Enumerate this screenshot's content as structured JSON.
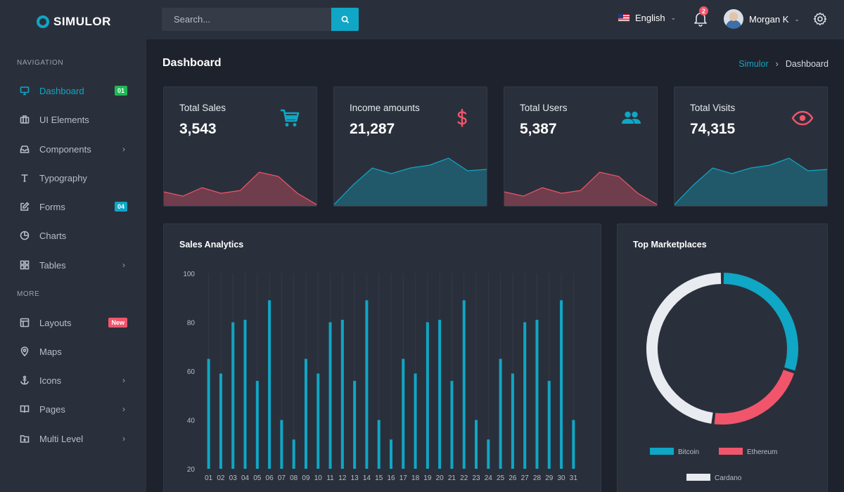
{
  "brand": {
    "name": "SIMULOR"
  },
  "sidebar": {
    "sections": [
      {
        "title": "NAVIGATION"
      },
      {
        "title": "MORE"
      }
    ],
    "items": [
      {
        "label": "Dashboard",
        "icon": "monitor-icon",
        "badge": "01",
        "badge_color": "#1db954",
        "active": true
      },
      {
        "label": "UI Elements",
        "icon": "briefcase-icon"
      },
      {
        "label": "Components",
        "icon": "inbox-icon",
        "chevron": true
      },
      {
        "label": "Typography",
        "icon": "type-icon"
      },
      {
        "label": "Forms",
        "icon": "edit-icon",
        "badge": "04",
        "badge_color": "#10a6c5"
      },
      {
        "label": "Charts",
        "icon": "pie-chart-icon"
      },
      {
        "label": "Tables",
        "icon": "grid-icon",
        "chevron": true
      },
      {
        "label": "Layouts",
        "icon": "layout-icon",
        "badge": "New",
        "badge_color": "#f1556c"
      },
      {
        "label": "Maps",
        "icon": "map-pin-icon"
      },
      {
        "label": "Icons",
        "icon": "anchor-icon",
        "chevron": true
      },
      {
        "label": "Pages",
        "icon": "book-icon",
        "chevron": true
      },
      {
        "label": "Multi Level",
        "icon": "folder-icon",
        "chevron": true
      }
    ]
  },
  "topbar": {
    "search_placeholder": "Search...",
    "language": "English",
    "notification_count": "2",
    "user_name": "Morgan K"
  },
  "page": {
    "title": "Dashboard",
    "breadcrumb": [
      "Simulor",
      "Dashboard"
    ]
  },
  "stats": [
    {
      "title": "Total Sales",
      "value": "3,543",
      "icon": "cart-icon",
      "color": "#10a6c5",
      "spark_color": "#f1556c",
      "spark": [
        18,
        12,
        24,
        16,
        20,
        46,
        40,
        16,
        0
      ]
    },
    {
      "title": "Income amounts",
      "value": "21,287",
      "icon": "dollar-icon",
      "color": "#f1556c",
      "spark_color": "#10a6c5",
      "spark": [
        0,
        28,
        52,
        44,
        52,
        56,
        66,
        48,
        50
      ]
    },
    {
      "title": "Total Users",
      "value": "5,387",
      "icon": "users-icon",
      "color": "#10a6c5",
      "spark_color": "#f1556c",
      "spark": [
        18,
        12,
        24,
        16,
        20,
        46,
        40,
        16,
        0
      ]
    },
    {
      "title": "Total Visits",
      "value": "74,315",
      "icon": "eye-icon",
      "color": "#f1556c",
      "spark_color": "#10a6c5",
      "spark": [
        0,
        28,
        52,
        44,
        52,
        56,
        66,
        48,
        50
      ]
    }
  ],
  "sales_analytics": {
    "title": "Sales Analytics"
  },
  "marketplaces": {
    "title": "Top Marketplaces"
  },
  "chart_data": [
    {
      "type": "bar",
      "title": "Sales Analytics",
      "categories": [
        "01",
        "02",
        "03",
        "04",
        "05",
        "06",
        "07",
        "08",
        "09",
        "10",
        "11",
        "12",
        "13",
        "14",
        "15",
        "16",
        "17",
        "18",
        "19",
        "20",
        "21",
        "22",
        "23",
        "24",
        "25",
        "26",
        "27",
        "28",
        "29",
        "30",
        "31"
      ],
      "values": [
        65,
        59,
        80,
        81,
        56,
        89,
        40,
        32,
        65,
        59,
        80,
        81,
        56,
        89,
        40,
        32,
        65,
        59,
        80,
        81,
        56,
        89,
        40,
        32,
        65,
        59,
        80,
        81,
        56,
        89,
        40
      ],
      "yticks": [
        100,
        80,
        60,
        40,
        20
      ],
      "ylim": [
        20,
        100
      ],
      "color": "#10a6c5"
    },
    {
      "type": "pie",
      "title": "Top Marketplaces",
      "donut": true,
      "labels": [
        "Bitcoin",
        "Ethereum",
        "Cardano"
      ],
      "values": [
        30,
        22,
        48
      ],
      "colors": [
        "#10a6c5",
        "#f1556c",
        "#e8ebf0"
      ]
    }
  ]
}
